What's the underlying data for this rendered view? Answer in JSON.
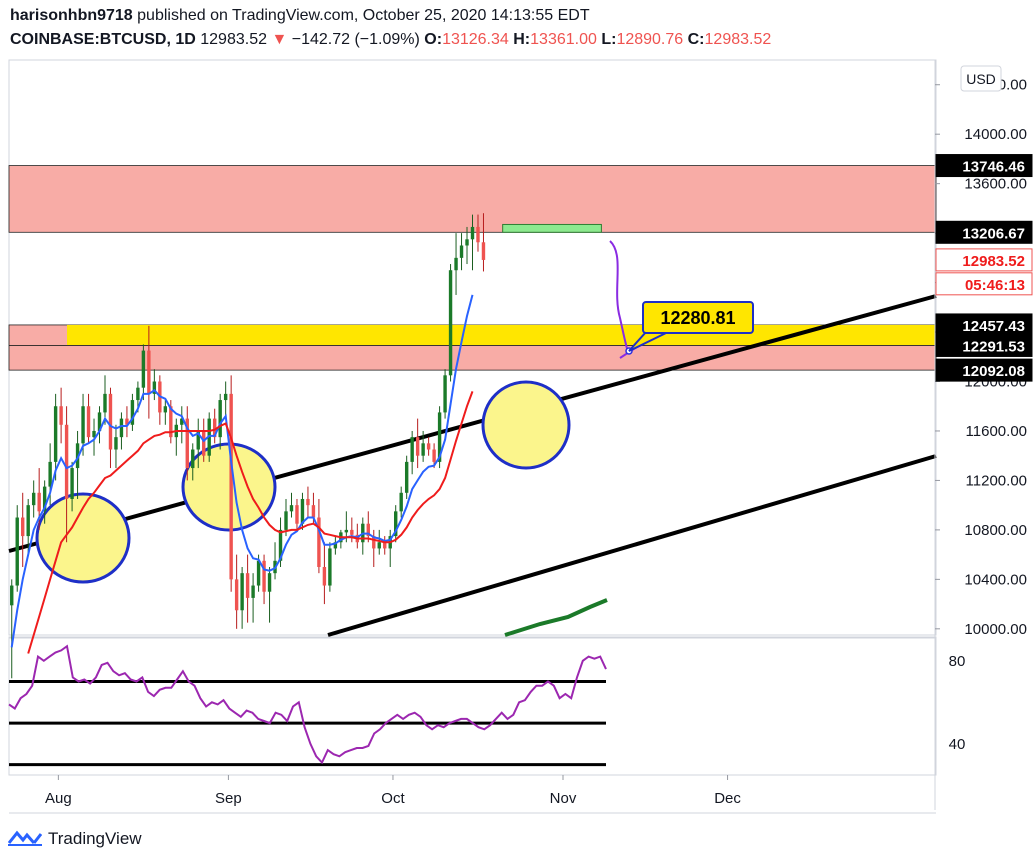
{
  "header": {
    "author": "harisonhbn9718",
    "published_text": "published on TradingView.com, October 25, 2020 14:13:55 EDT",
    "symbol": "COINBASE:BTCUSD, 1D",
    "last": "12983.52",
    "change": "−142.72 (−1.09%)",
    "open_label": "O:",
    "open": "13126.34",
    "high_label": "H:",
    "high": "13361.00",
    "low_label": "L:",
    "low": "12890.76",
    "close_label": "C:",
    "close": "12983.52"
  },
  "footer": {
    "brand": "TradingView",
    "logo_icon": "tradingview-logo-icon"
  },
  "colors": {
    "up": "#26a69a",
    "up_fill": "#1b7a29",
    "down": "#ef5350",
    "ema_fast": "#2962ff",
    "ema_slow": "#ef1c1c",
    "rsi": "#9c27b0",
    "resistance_zone": "#f8aca6",
    "support_zone": "#ffe600",
    "green_box": "#8de98f",
    "highlight_circle": "#fbf58c"
  },
  "chart_data": {
    "type": "candlestick",
    "currency_button": "USD",
    "price_axis": {
      "range": [
        9950,
        14600
      ],
      "ticks": [
        "14400.00",
        "14000.00",
        "13600.00",
        "13200.00",
        "12800.00",
        "12400.00",
        "12000.00",
        "11600.00",
        "11200.00",
        "10800.00",
        "10400.00",
        "10000.00"
      ],
      "labels": [
        {
          "text": "13746.46",
          "value": 13746.46,
          "style": "black"
        },
        {
          "text": "13206.67",
          "value": 13206.67,
          "style": "black"
        },
        {
          "text": "12983.52",
          "value": 12983.52,
          "style": "red"
        },
        {
          "text": "05:46:13",
          "value": 12790,
          "style": "red"
        },
        {
          "text": "12457.43",
          "value": 12457.43,
          "style": "black"
        },
        {
          "text": "12291.53",
          "value": 12291.53,
          "style": "black"
        },
        {
          "text": "12092.08",
          "value": 12092.08,
          "style": "black"
        }
      ]
    },
    "time_axis": {
      "labels": [
        "Aug",
        "Sep",
        "Oct",
        "Nov",
        "Dec"
      ],
      "dates": [
        "2020-08-01",
        "2020-09-01",
        "2020-10-01",
        "2020-11-01",
        "2020-12-01"
      ],
      "start": "2020-07-23",
      "end": "2021-01-08"
    },
    "zones": [
      {
        "name": "resistance",
        "from": 13206.67,
        "to": 13746.46
      },
      {
        "name": "support",
        "from": 12092.08,
        "to": 12457.43
      },
      {
        "name": "support-core",
        "from": 12291.53,
        "to": 12457.43
      },
      {
        "name": "target",
        "from": 13206.67,
        "to": 13270,
        "start": "2020-10-21",
        "end": "2020-11-08"
      }
    ],
    "callout": {
      "text": "12280.81",
      "value": 12280.81,
      "date": "2020-10-29"
    },
    "rsi": {
      "levels": [
        70,
        50,
        30
      ],
      "ticks": [
        "80",
        "40"
      ],
      "range": [
        25,
        90
      ],
      "values": [
        59,
        57,
        62,
        64,
        68,
        82,
        80,
        82,
        84,
        85,
        87,
        72,
        70,
        71,
        69,
        72,
        78,
        79,
        75,
        73,
        74,
        71,
        70,
        72,
        65,
        63,
        66,
        67,
        67,
        71,
        75,
        70,
        68,
        62,
        58,
        60,
        59,
        61,
        57,
        55,
        53,
        56,
        55,
        52,
        51,
        50,
        55,
        54,
        51,
        58,
        60,
        48,
        40,
        34,
        31,
        37,
        35,
        34,
        36,
        37,
        38,
        38,
        39,
        45,
        47,
        50,
        52,
        54,
        52,
        54,
        55,
        53,
        49,
        47,
        49,
        48,
        50,
        51,
        52,
        52,
        50,
        48,
        47,
        49,
        52,
        55,
        52,
        54,
        60,
        61,
        65,
        68,
        68,
        70,
        68,
        62,
        64,
        62,
        72,
        80,
        82,
        81,
        82,
        76
      ]
    },
    "candles": [
      [
        10190,
        10400,
        9600,
        10350
      ],
      [
        10350,
        11000,
        10300,
        10900
      ],
      [
        10900,
        11100,
        10500,
        10750
      ],
      [
        10750,
        11050,
        10600,
        11000
      ],
      [
        11000,
        11200,
        10900,
        11100
      ],
      [
        11100,
        11300,
        10800,
        10950
      ],
      [
        10950,
        11200,
        10850,
        11150
      ],
      [
        11150,
        11500,
        11000,
        11350
      ],
      [
        11350,
        11900,
        11200,
        11800
      ],
      [
        11800,
        11950,
        11500,
        11650
      ],
      [
        11650,
        11800,
        10700,
        11050
      ],
      [
        11050,
        11350,
        10950,
        11300
      ],
      [
        11300,
        11600,
        11050,
        11500
      ],
      [
        11500,
        11900,
        11400,
        11800
      ],
      [
        11800,
        11900,
        11500,
        11550
      ],
      [
        11550,
        11700,
        11400,
        11600
      ],
      [
        11600,
        11800,
        11500,
        11750
      ],
      [
        11750,
        12050,
        11650,
        11900
      ],
      [
        11900,
        11950,
        11300,
        11450
      ],
      [
        11450,
        11650,
        11300,
        11550
      ],
      [
        11550,
        11750,
        11450,
        11700
      ],
      [
        11700,
        11800,
        11550,
        11650
      ],
      [
        11650,
        11900,
        11600,
        11850
      ],
      [
        11850,
        12000,
        11750,
        11950
      ],
      [
        11950,
        12300,
        11850,
        12250
      ],
      [
        12250,
        12450,
        11700,
        11900
      ],
      [
        11900,
        12100,
        11850,
        12000
      ],
      [
        12000,
        12050,
        11650,
        11750
      ],
      [
        11750,
        11850,
        11650,
        11800
      ],
      [
        11800,
        11850,
        11500,
        11550
      ],
      [
        11550,
        11700,
        11400,
        11650
      ],
      [
        11650,
        11800,
        11500,
        11700
      ],
      [
        11700,
        11800,
        11200,
        11300
      ],
      [
        11300,
        11500,
        11200,
        11450
      ],
      [
        11450,
        11700,
        11300,
        11600
      ],
      [
        11600,
        11700,
        11350,
        11400
      ],
      [
        11400,
        11750,
        11350,
        11700
      ],
      [
        11700,
        11780,
        11500,
        11550
      ],
      [
        11550,
        11900,
        11450,
        11850
      ],
      [
        11850,
        12000,
        11700,
        11900
      ],
      [
        11900,
        12050,
        10300,
        10400
      ],
      [
        10400,
        10600,
        10000,
        10150
      ],
      [
        10150,
        10500,
        10000,
        10450
      ],
      [
        10450,
        10600,
        10050,
        10250
      ],
      [
        10250,
        10450,
        10050,
        10350
      ],
      [
        10350,
        10600,
        10300,
        10550
      ],
      [
        10550,
        10600,
        10200,
        10300
      ],
      [
        10300,
        10500,
        10050,
        10450
      ],
      [
        10450,
        10700,
        10400,
        10550
      ],
      [
        10550,
        10900,
        10500,
        10800
      ],
      [
        10800,
        11050,
        10750,
        10950
      ],
      [
        10950,
        11100,
        10900,
        11000
      ],
      [
        11000,
        11050,
        10800,
        10850
      ],
      [
        10850,
        11100,
        10800,
        11050
      ],
      [
        11050,
        11150,
        10900,
        11000
      ],
      [
        11000,
        11100,
        10850,
        10900
      ],
      [
        10900,
        11050,
        10450,
        10500
      ],
      [
        10500,
        10700,
        10200,
        10350
      ],
      [
        10350,
        10700,
        10300,
        10650
      ],
      [
        10650,
        10750,
        10600,
        10700
      ],
      [
        10700,
        10800,
        10650,
        10780
      ],
      [
        10780,
        10950,
        10700,
        10800
      ],
      [
        10800,
        10900,
        10700,
        10760
      ],
      [
        10760,
        10850,
        10650,
        10700
      ],
      [
        10700,
        10900,
        10600,
        10850
      ],
      [
        10850,
        10950,
        10700,
        10750
      ],
      [
        10750,
        10800,
        10500,
        10650
      ],
      [
        10650,
        10800,
        10600,
        10700
      ],
      [
        10700,
        10750,
        10600,
        10650
      ],
      [
        10650,
        10800,
        10500,
        10750
      ],
      [
        10750,
        11000,
        10700,
        10950
      ],
      [
        10950,
        11150,
        10900,
        11100
      ],
      [
        11100,
        11400,
        11050,
        11350
      ],
      [
        11350,
        11600,
        11250,
        11550
      ],
      [
        11550,
        11700,
        11300,
        11400
      ],
      [
        11400,
        11600,
        11350,
        11500
      ],
      [
        11500,
        11550,
        11400,
        11450
      ],
      [
        11450,
        11500,
        11300,
        11350
      ],
      [
        11350,
        11800,
        11300,
        11750
      ],
      [
        11750,
        12100,
        11700,
        12050
      ],
      [
        12050,
        12950,
        12000,
        12900
      ],
      [
        12900,
        13200,
        12700,
        13000
      ],
      [
        13000,
        13200,
        12900,
        13100
      ],
      [
        13100,
        13250,
        12950,
        13150
      ],
      [
        13150,
        13350,
        12900,
        13250
      ],
      [
        13250,
        13350,
        13050,
        13126
      ],
      [
        13126,
        13361,
        12890,
        12983
      ]
    ],
    "series": [
      {
        "name": "ema-fast",
        "values": [
          9850,
          10150,
          10400,
          10600,
          10800,
          10900,
          10980,
          11100,
          11280,
          11380,
          11300,
          11320,
          11380,
          11480,
          11500,
          11530,
          11600,
          11700,
          11640,
          11620,
          11640,
          11640,
          11700,
          11780,
          11900,
          11900,
          11930,
          11880,
          11860,
          11780,
          11740,
          11720,
          11620,
          11560,
          11580,
          11520,
          11560,
          11560,
          11660,
          11720,
          11350,
          11020,
          10800,
          10650,
          10570,
          10560,
          10480,
          10470,
          10490,
          10570,
          10680,
          10760,
          10790,
          10860,
          10900,
          10900,
          10800,
          10680,
          10680,
          10690,
          10720,
          10740,
          10750,
          10740,
          10770,
          10770,
          10740,
          10730,
          10710,
          10720,
          10790,
          10880,
          10990,
          11130,
          11200,
          11270,
          11310,
          11320,
          11390,
          11530,
          11820,
          12100,
          12320,
          12530,
          12700
        ]
      },
      {
        "name": "ema-slow",
        "values": [
          null,
          null,
          null,
          9800,
          9950,
          10100,
          10250,
          10400,
          10550,
          10700,
          10760,
          10820,
          10900,
          10980,
          11050,
          11100,
          11160,
          11220,
          11240,
          11280,
          11320,
          11360,
          11400,
          11440,
          11500,
          11530,
          11560,
          11570,
          11590,
          11590,
          11600,
          11600,
          11600,
          11600,
          11600,
          11600,
          11600,
          11610,
          11640,
          11660,
          11540,
          11400,
          11270,
          11150,
          11050,
          10980,
          10900,
          10840,
          10800,
          10780,
          10790,
          10800,
          10800,
          10820,
          10840,
          10850,
          10820,
          10770,
          10760,
          10750,
          10740,
          10740,
          10740,
          10730,
          10730,
          10730,
          10720,
          10710,
          10700,
          10700,
          10720,
          10760,
          10820,
          10900,
          10960,
          11010,
          11050,
          11080,
          11130,
          11220,
          11370,
          11520,
          11660,
          11800,
          11920
        ]
      },
      {
        "name": "projection",
        "values": []
      }
    ]
  }
}
